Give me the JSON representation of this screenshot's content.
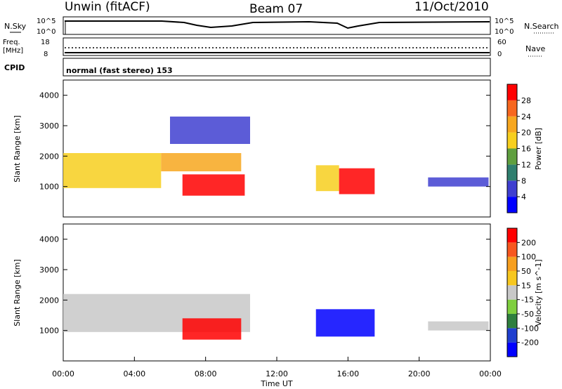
{
  "header": {
    "radar": "Unwin (fitACF)",
    "beam": "Beam 07",
    "date": "11/Oct/2010"
  },
  "top_panels": {
    "nsky": {
      "label": "N.Sky",
      "ticks_left": [
        "10^5",
        "10^0"
      ],
      "ticks_right": [
        "10^5",
        "10^0"
      ],
      "right_label": "N.Search"
    },
    "freq": {
      "label_line1": "Freq.",
      "label_line2": "[MHz]",
      "ticks_left": [
        "18",
        "8"
      ],
      "ticks_right": [
        "60",
        "0"
      ],
      "right_label": "Nave"
    },
    "cpid": {
      "label": "CPID",
      "text": "normal (fast stereo) 153"
    }
  },
  "chart_data": [
    {
      "type": "heatmap",
      "name": "power",
      "ylabel": "Slant Range [km]",
      "xlabel": "",
      "ylim": [
        0,
        4500
      ],
      "xlim": [
        0,
        24
      ],
      "yticks": [
        1000,
        2000,
        3000,
        4000
      ],
      "colorbar": {
        "label": "Power [dB]",
        "ticks": [
          "4",
          "8",
          "12",
          "16",
          "20",
          "24",
          "28"
        ],
        "colors": [
          "#0000ff",
          "#3f3fd0",
          "#2f7f6f",
          "#5f9f3f",
          "#f7cf1f",
          "#f7a71f",
          "#f7671f",
          "#ff0000"
        ]
      },
      "regions": [
        {
          "t0": 0.0,
          "t1": 5.5,
          "r0": 950,
          "r1": 2100,
          "level": 4
        },
        {
          "t0": 5.5,
          "t1": 10.0,
          "r0": 1500,
          "r1": 2100,
          "level": 5
        },
        {
          "t0": 6.7,
          "t1": 10.2,
          "r0": 700,
          "r1": 1400,
          "level": 7
        },
        {
          "t0": 6.0,
          "t1": 10.5,
          "r0": 2400,
          "r1": 3300,
          "level": 1
        },
        {
          "t0": 14.2,
          "t1": 15.5,
          "r0": 850,
          "r1": 1700,
          "level": 4
        },
        {
          "t0": 15.5,
          "t1": 17.5,
          "r0": 750,
          "r1": 1600,
          "level": 7
        },
        {
          "t0": 20.5,
          "t1": 23.9,
          "r0": 1000,
          "r1": 1300,
          "level": 1
        }
      ]
    },
    {
      "type": "heatmap",
      "name": "velocity",
      "ylabel": "Slant Range [km]",
      "xlabel": "Time UT",
      "ylim": [
        0,
        4500
      ],
      "xlim": [
        0,
        24
      ],
      "yticks": [
        1000,
        2000,
        3000,
        4000
      ],
      "xticks": [
        "00:00",
        "04:00",
        "08:00",
        "12:00",
        "16:00",
        "20:00",
        "00:00"
      ],
      "colorbar": {
        "label": "Velocity [m s^-1]",
        "ticks": [
          "200",
          "100",
          "50",
          "15",
          "-15",
          "-50",
          "-100",
          "-200"
        ],
        "colors": [
          "#0000ff",
          "#1f3fcf",
          "#2f7f3f",
          "#7fcf3f",
          "#c8c8c8",
          "#f7c71f",
          "#f79f1f",
          "#f7571f",
          "#ff0000"
        ]
      },
      "regions": [
        {
          "t0": 0.0,
          "t1": 10.5,
          "r0": 950,
          "r1": 2200,
          "level": 4
        },
        {
          "t0": 6.7,
          "t1": 10.0,
          "r0": 700,
          "r1": 1400,
          "level": 8
        },
        {
          "t0": 14.2,
          "t1": 17.5,
          "r0": 800,
          "r1": 1700,
          "level": 0
        },
        {
          "t0": 20.5,
          "t1": 23.9,
          "r0": 1000,
          "r1": 1300,
          "level": 4
        }
      ]
    }
  ]
}
